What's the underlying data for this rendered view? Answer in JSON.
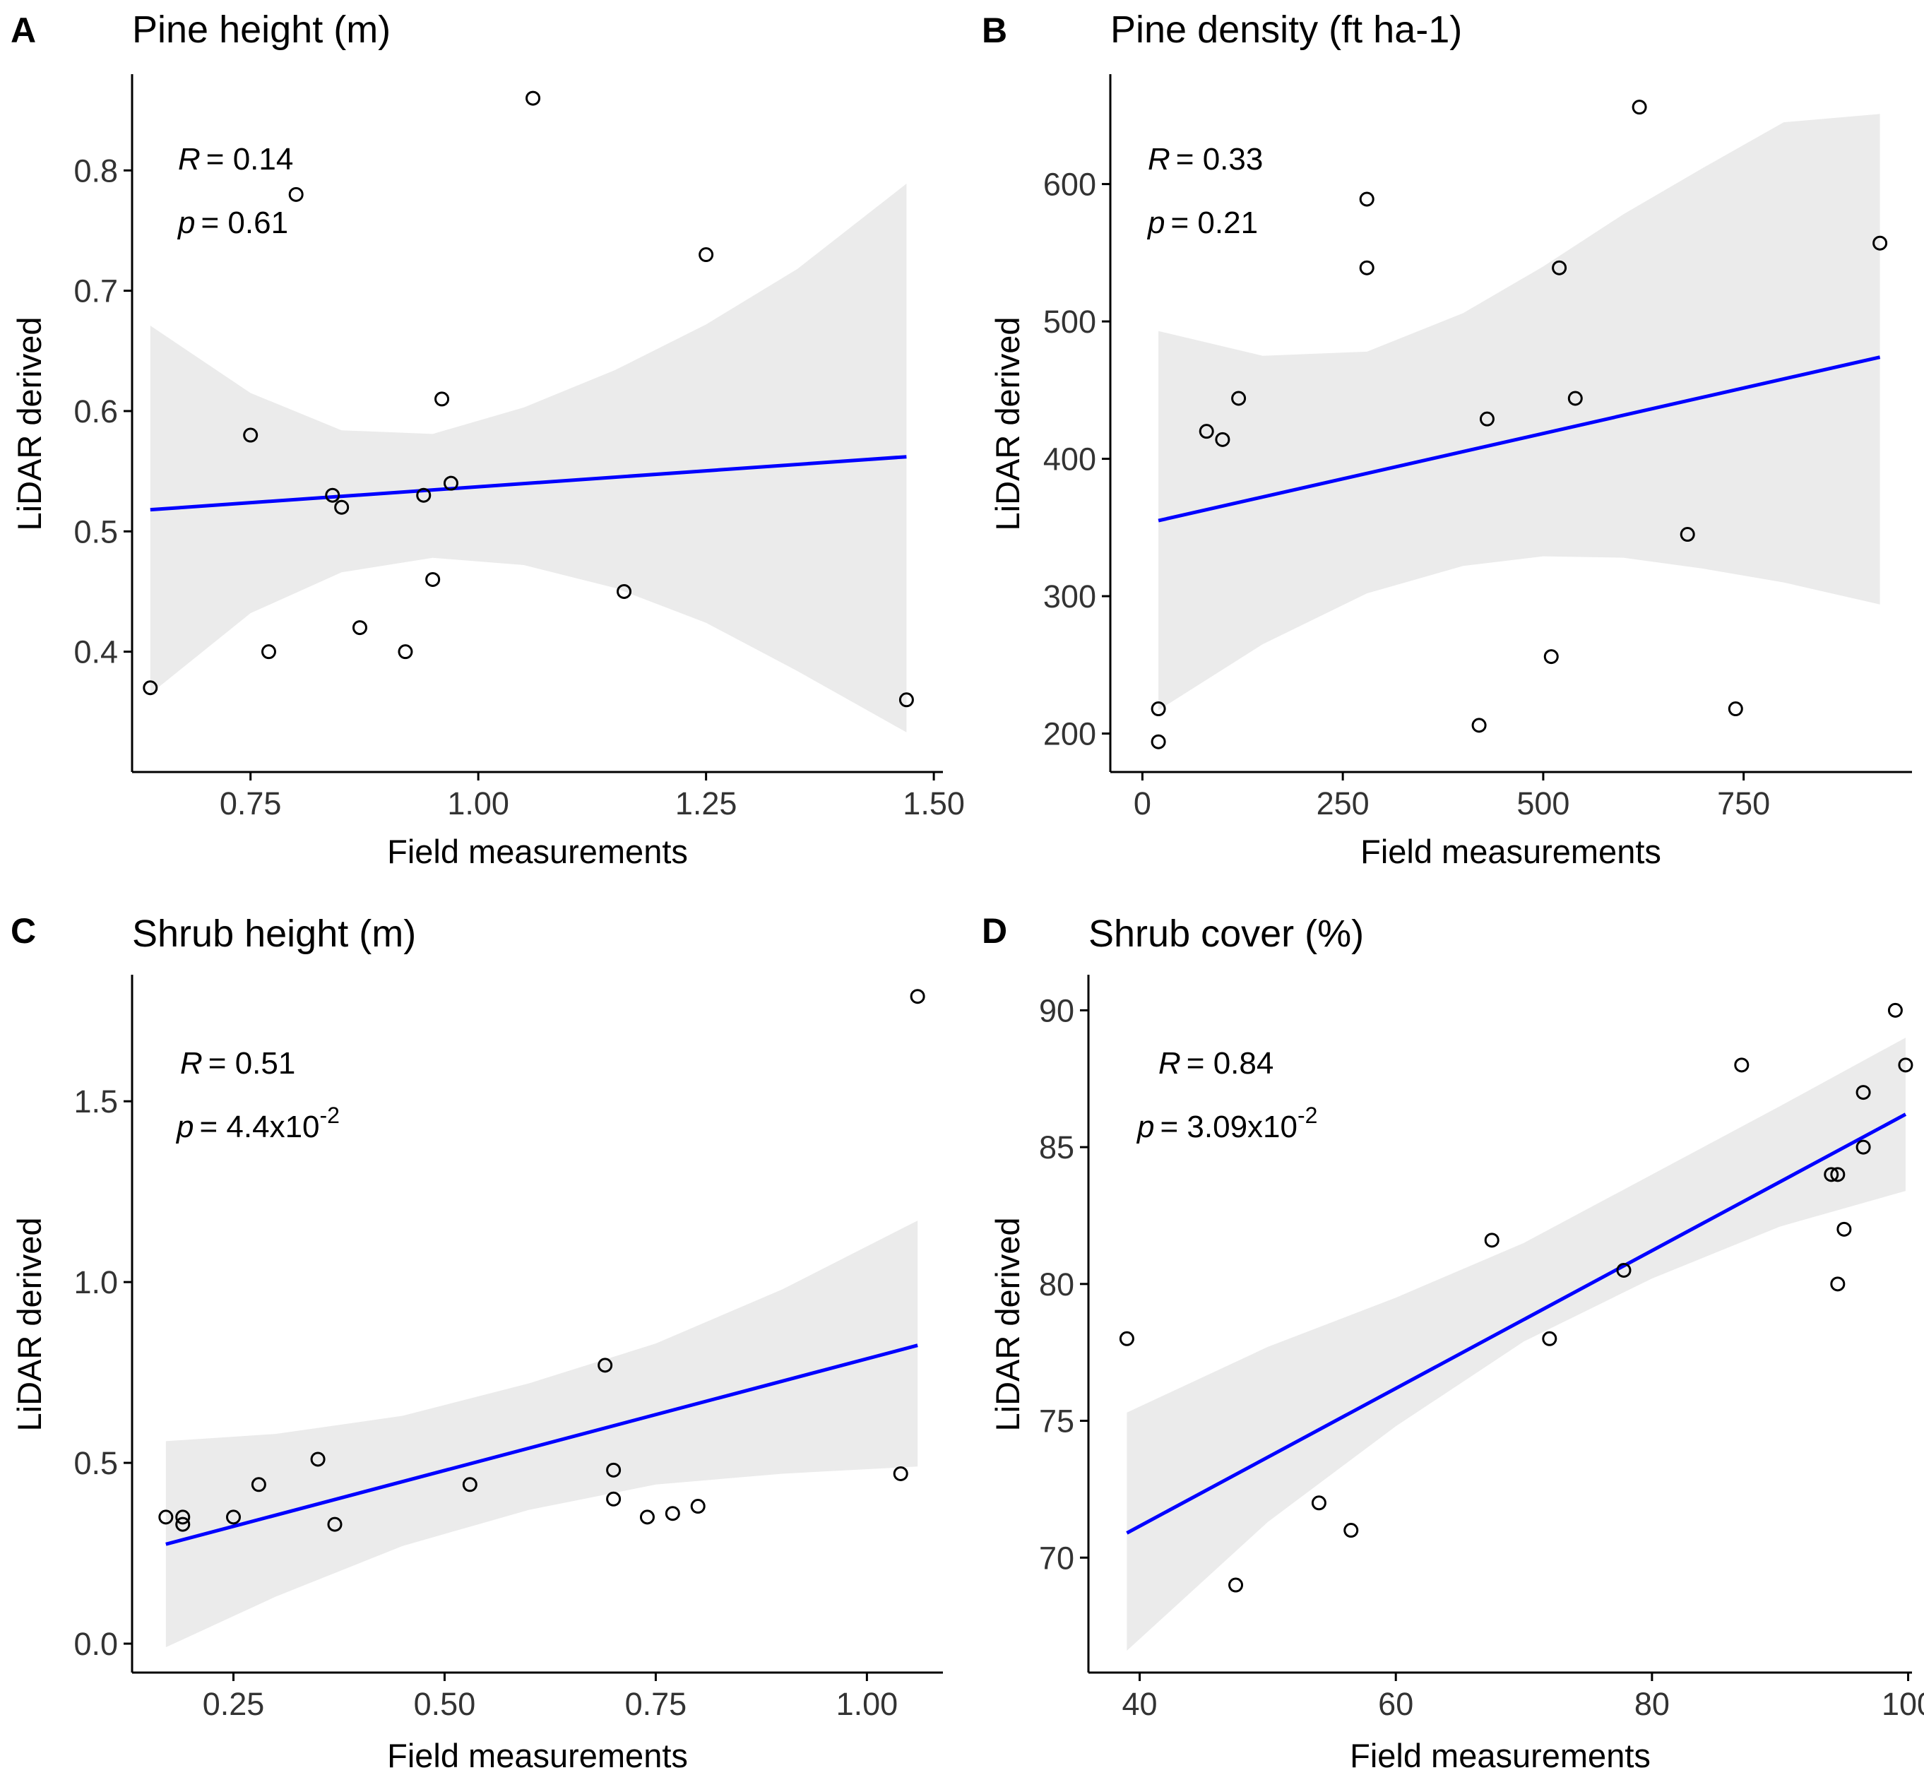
{
  "chart_data": [
    {
      "type": "scatter",
      "panel": "A",
      "title": "Pine height (m)",
      "xlabel": "Field measurements",
      "ylabel": "LiDAR derived",
      "xlim": [
        0.62,
        1.51
      ],
      "ylim": [
        0.3,
        0.88
      ],
      "xticks": [
        0.75,
        1.0,
        1.25,
        1.5
      ],
      "xtick_labels": [
        "0.75",
        "1.00",
        "1.25",
        "1.50"
      ],
      "yticks": [
        0.4,
        0.5,
        0.6,
        0.7,
        0.8
      ],
      "ytick_labels": [
        "0.4",
        "0.5",
        "0.6",
        "0.7",
        "0.8"
      ],
      "stats": {
        "r_label": "R",
        "r_value": "= 0.14",
        "p_label": "p",
        "p_value": "= 0.61",
        "p_exp": ""
      },
      "points": [
        {
          "x": 0.64,
          "y": 0.37
        },
        {
          "x": 0.75,
          "y": 0.58
        },
        {
          "x": 0.77,
          "y": 0.4
        },
        {
          "x": 0.8,
          "y": 0.78
        },
        {
          "x": 0.84,
          "y": 0.53
        },
        {
          "x": 0.85,
          "y": 0.52
        },
        {
          "x": 0.87,
          "y": 0.42
        },
        {
          "x": 0.92,
          "y": 0.4
        },
        {
          "x": 0.94,
          "y": 0.53
        },
        {
          "x": 0.95,
          "y": 0.46
        },
        {
          "x": 0.96,
          "y": 0.61
        },
        {
          "x": 0.97,
          "y": 0.54
        },
        {
          "x": 1.06,
          "y": 0.86
        },
        {
          "x": 1.16,
          "y": 0.45
        },
        {
          "x": 1.25,
          "y": 0.73
        },
        {
          "x": 1.47,
          "y": 0.36
        }
      ],
      "fit": {
        "x": [
          0.64,
          1.47
        ],
        "y": [
          0.518,
          0.562
        ]
      },
      "ci": {
        "x": [
          0.64,
          0.75,
          0.85,
          0.95,
          1.05,
          1.15,
          1.25,
          1.35,
          1.47
        ],
        "lower": [
          0.365,
          0.432,
          0.466,
          0.478,
          0.472,
          0.453,
          0.424,
          0.384,
          0.333
        ],
        "upper": [
          0.671,
          0.615,
          0.584,
          0.581,
          0.603,
          0.634,
          0.672,
          0.718,
          0.789
        ]
      }
    },
    {
      "type": "scatter",
      "panel": "B",
      "title": "Pine density (ft ha-1)",
      "xlabel": "Field measurements",
      "ylabel": "LiDAR derived",
      "xlim": [
        -40,
        960
      ],
      "ylim": [
        172,
        680
      ],
      "xticks": [
        0,
        250,
        500,
        750
      ],
      "xtick_labels": [
        "0",
        "250",
        "500",
        "750"
      ],
      "yticks": [
        200,
        300,
        400,
        500,
        600
      ],
      "ytick_labels": [
        "200",
        "300",
        "400",
        "500",
        "600"
      ],
      "stats": {
        "r_label": "R",
        "r_value": "= 0.33",
        "p_label": "p",
        "p_value": "= 0.21",
        "p_exp": ""
      },
      "points": [
        {
          "x": 20,
          "y": 194
        },
        {
          "x": 20,
          "y": 218
        },
        {
          "x": 80,
          "y": 420
        },
        {
          "x": 100,
          "y": 414
        },
        {
          "x": 120,
          "y": 444
        },
        {
          "x": 280,
          "y": 589
        },
        {
          "x": 280,
          "y": 539
        },
        {
          "x": 420,
          "y": 206
        },
        {
          "x": 430,
          "y": 429
        },
        {
          "x": 510,
          "y": 256
        },
        {
          "x": 520,
          "y": 539
        },
        {
          "x": 540,
          "y": 444
        },
        {
          "x": 620,
          "y": 656
        },
        {
          "x": 680,
          "y": 345
        },
        {
          "x": 740,
          "y": 218
        },
        {
          "x": 920,
          "y": 557
        }
      ],
      "fit": {
        "x": [
          20,
          920
        ],
        "y": [
          355,
          474
        ]
      },
      "ci": {
        "x": [
          20,
          150,
          280,
          400,
          500,
          600,
          700,
          800,
          920
        ],
        "lower": [
          217,
          265,
          302,
          322,
          329,
          328,
          320,
          310,
          294
        ],
        "upper": [
          493,
          475,
          478,
          506,
          540,
          578,
          612,
          645,
          651
        ]
      }
    },
    {
      "type": "scatter",
      "panel": "C",
      "title": "Shrub height (m)",
      "xlabel": "Field measurements",
      "ylabel": "LiDAR derived",
      "xlim": [
        0.13,
        1.09
      ],
      "ylim": [
        -0.08,
        1.85
      ],
      "xticks": [
        0.25,
        0.5,
        0.75,
        1.0
      ],
      "xtick_labels": [
        "0.25",
        "0.50",
        "0.75",
        "1.00"
      ],
      "yticks": [
        0.0,
        0.5,
        1.0,
        1.5
      ],
      "ytick_labels": [
        "0.0",
        "0.5",
        "1.0",
        "1.5"
      ],
      "stats": {
        "r_label": "R",
        "r_value": "= 0.51",
        "p_label": "p",
        "p_value": "= 4.4x10",
        "p_exp": "-2"
      },
      "points": [
        {
          "x": 0.17,
          "y": 0.35
        },
        {
          "x": 0.19,
          "y": 0.35
        },
        {
          "x": 0.19,
          "y": 0.33
        },
        {
          "x": 0.25,
          "y": 0.35
        },
        {
          "x": 0.28,
          "y": 0.44
        },
        {
          "x": 0.35,
          "y": 0.51
        },
        {
          "x": 0.37,
          "y": 0.33
        },
        {
          "x": 0.53,
          "y": 0.44
        },
        {
          "x": 0.69,
          "y": 0.77
        },
        {
          "x": 0.7,
          "y": 0.48
        },
        {
          "x": 0.7,
          "y": 0.4
        },
        {
          "x": 0.74,
          "y": 0.35
        },
        {
          "x": 0.77,
          "y": 0.36
        },
        {
          "x": 0.8,
          "y": 0.38
        },
        {
          "x": 1.04,
          "y": 0.47
        },
        {
          "x": 1.06,
          "y": 1.79
        }
      ],
      "fit": {
        "x": [
          0.17,
          1.06
        ],
        "y": [
          0.275,
          0.825
        ]
      },
      "ci": {
        "x": [
          0.17,
          0.3,
          0.45,
          0.6,
          0.75,
          0.9,
          1.06
        ],
        "lower": [
          -0.01,
          0.13,
          0.27,
          0.37,
          0.44,
          0.47,
          0.49
        ],
        "upper": [
          0.56,
          0.58,
          0.63,
          0.72,
          0.83,
          0.98,
          1.17
        ]
      }
    },
    {
      "type": "scatter",
      "panel": "D",
      "title": "Shrub cover (%)",
      "xlabel": "Field measurements",
      "ylabel": "LiDAR derived",
      "xlim": [
        36,
        100.3
      ],
      "ylim": [
        65.8,
        91.3
      ],
      "xticks": [
        40,
        60,
        80,
        100
      ],
      "xtick_labels": [
        "40",
        "60",
        "80",
        "100"
      ],
      "yticks": [
        70,
        75,
        80,
        85,
        90
      ],
      "ytick_labels": [
        "70",
        "75",
        "80",
        "85",
        "90"
      ],
      "stats": {
        "r_label": "R",
        "r_value": "= 0.84",
        "p_label": "p",
        "p_value": "= 3.09x10",
        "p_exp": "-2"
      },
      "points": [
        {
          "x": 39,
          "y": 78
        },
        {
          "x": 47.5,
          "y": 69
        },
        {
          "x": 54,
          "y": 72
        },
        {
          "x": 56.5,
          "y": 71
        },
        {
          "x": 67.5,
          "y": 81.6
        },
        {
          "x": 72,
          "y": 78
        },
        {
          "x": 77.8,
          "y": 80.5
        },
        {
          "x": 87,
          "y": 88
        },
        {
          "x": 94,
          "y": 84
        },
        {
          "x": 94.5,
          "y": 84
        },
        {
          "x": 94.5,
          "y": 80
        },
        {
          "x": 95,
          "y": 82
        },
        {
          "x": 96.5,
          "y": 85
        },
        {
          "x": 96.5,
          "y": 87
        },
        {
          "x": 99,
          "y": 90
        },
        {
          "x": 99.8,
          "y": 88
        }
      ],
      "fit": {
        "x": [
          39,
          99.8
        ],
        "y": [
          70.9,
          86.2
        ]
      },
      "ci": {
        "x": [
          39,
          50,
          60,
          70,
          80,
          90,
          99.8
        ],
        "lower": [
          66.6,
          71.3,
          74.8,
          77.9,
          80.2,
          82.1,
          83.4
        ],
        "upper": [
          75.3,
          77.7,
          79.5,
          81.5,
          84.0,
          86.5,
          89.0
        ]
      }
    }
  ]
}
